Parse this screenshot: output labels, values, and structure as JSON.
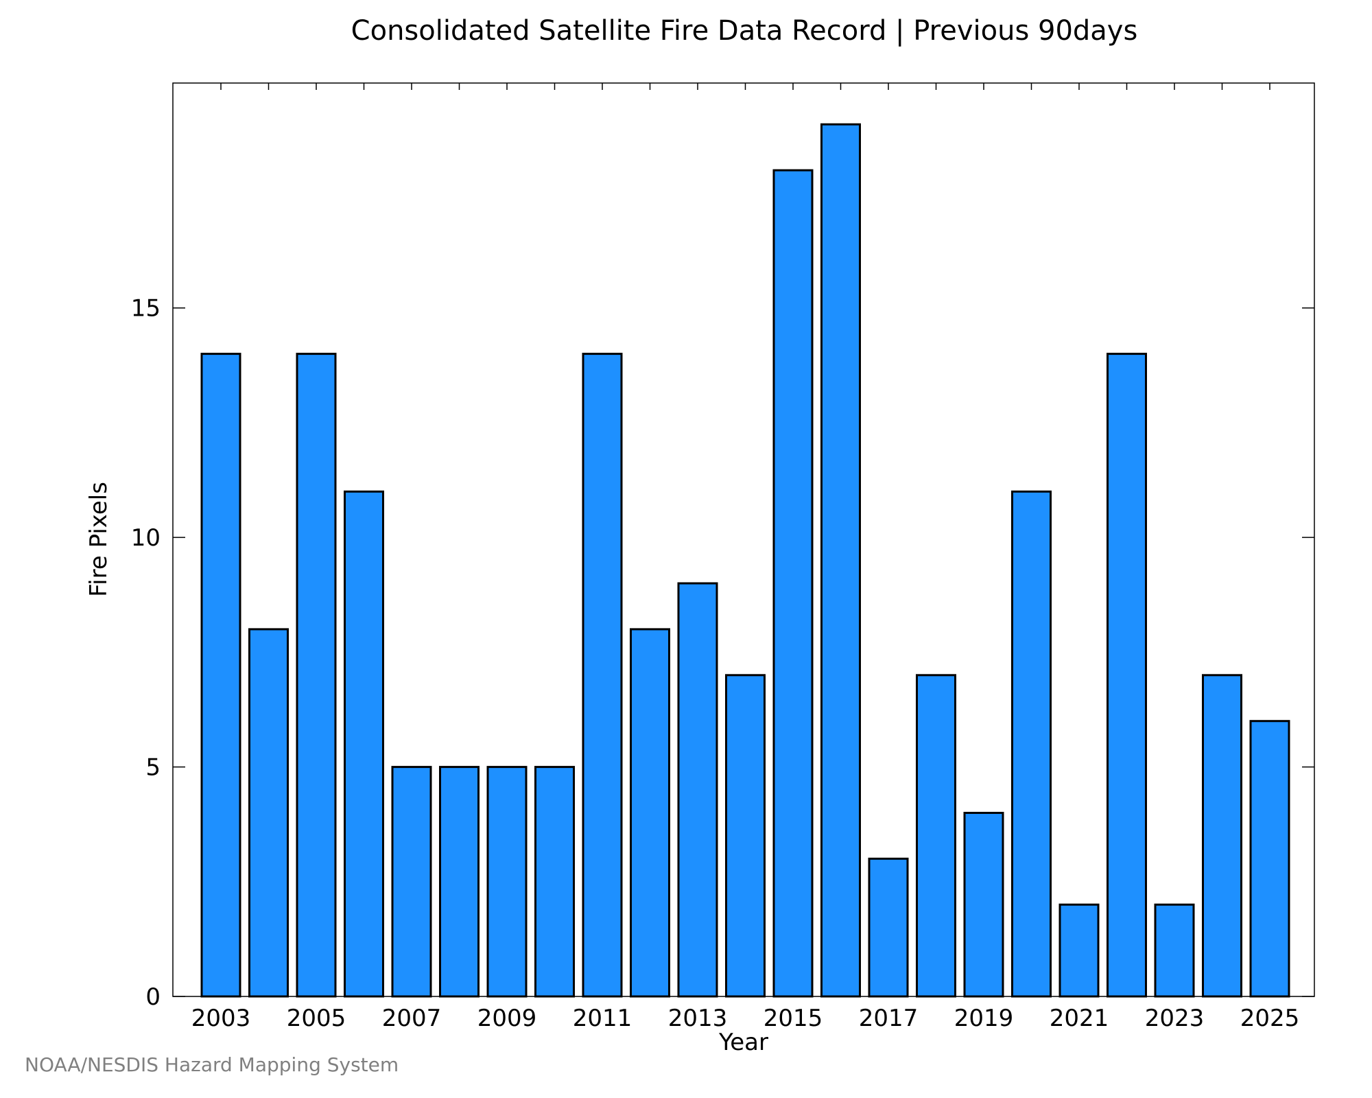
{
  "chart_data": {
    "type": "bar",
    "title": "Consolidated Satellite Fire Data Record | Previous 90days",
    "xlabel": "Year",
    "ylabel": "Fire Pixels",
    "categories": [
      "2003",
      "2004",
      "2005",
      "2006",
      "2007",
      "2008",
      "2009",
      "2010",
      "2011",
      "2012",
      "2013",
      "2014",
      "2015",
      "2016",
      "2017",
      "2018",
      "2019",
      "2020",
      "2021",
      "2022",
      "2023",
      "2024",
      "2025"
    ],
    "values": [
      14,
      8,
      14,
      11,
      5,
      5,
      5,
      5,
      14,
      8,
      9,
      7,
      18,
      19,
      3,
      7,
      4,
      11,
      2,
      14,
      2,
      7,
      6
    ],
    "x_tick_labels": [
      "2003",
      "2005",
      "2007",
      "2009",
      "2011",
      "2013",
      "2015",
      "2017",
      "2019",
      "2021",
      "2023",
      "2025"
    ],
    "y_ticks": [
      0,
      5,
      10,
      15
    ],
    "ylim": [
      0,
      19.9
    ],
    "grid": false,
    "bar_color": "#1e90ff",
    "bar_edge_color": "#000000"
  },
  "footer": {
    "credit": "NOAA/NESDIS Hazard Mapping System"
  }
}
